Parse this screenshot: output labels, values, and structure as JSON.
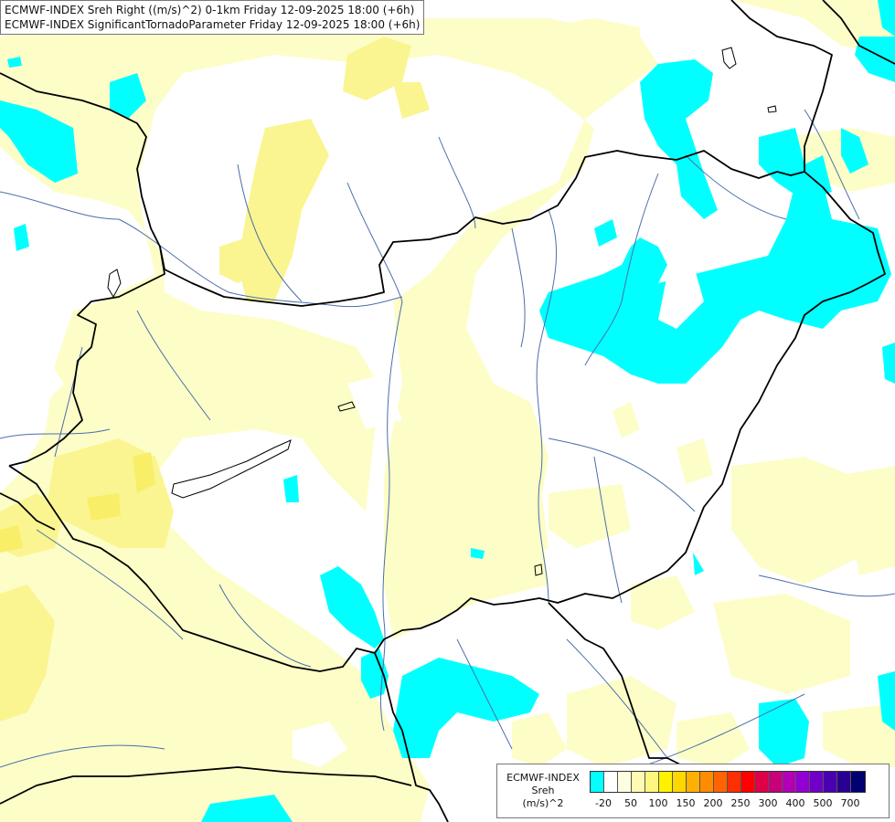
{
  "header": {
    "line1": "ECMWF-INDEX Sreh Right ((m/s)^2) 0-1km Friday 12-09-2025 18:00 (+6h)",
    "line2": "ECMWF-INDEX SignificantTornadoParameter Friday 12-09-2025 18:00 (+6h)"
  },
  "legend": {
    "source": "ECMWF-INDEX",
    "variable": "Sreh",
    "unit": "(m/s)^2",
    "tick_labels": [
      "-20",
      "50",
      "100",
      "150",
      "200",
      "250",
      "300",
      "400",
      "500",
      "700"
    ],
    "colors": [
      "#00ffff",
      "#ffffff",
      "#fffde0",
      "#fffbb0",
      "#fff680",
      "#fff200",
      "#ffd700",
      "#ffb000",
      "#ff8c00",
      "#ff6400",
      "#ff3000",
      "#ff0000",
      "#e0004a",
      "#c8007a",
      "#b400b4",
      "#9400d3",
      "#7000c8",
      "#4a00b0",
      "#2a0090",
      "#000070"
    ]
  },
  "map_colors": {
    "background": "#ffffff",
    "light_yellow": "#fdfdc8",
    "yellow": "#faf590",
    "deeper_yellow": "#f8ee68",
    "cyan": "#00ffff",
    "border": "#000000",
    "river": "#4a6fa8"
  }
}
